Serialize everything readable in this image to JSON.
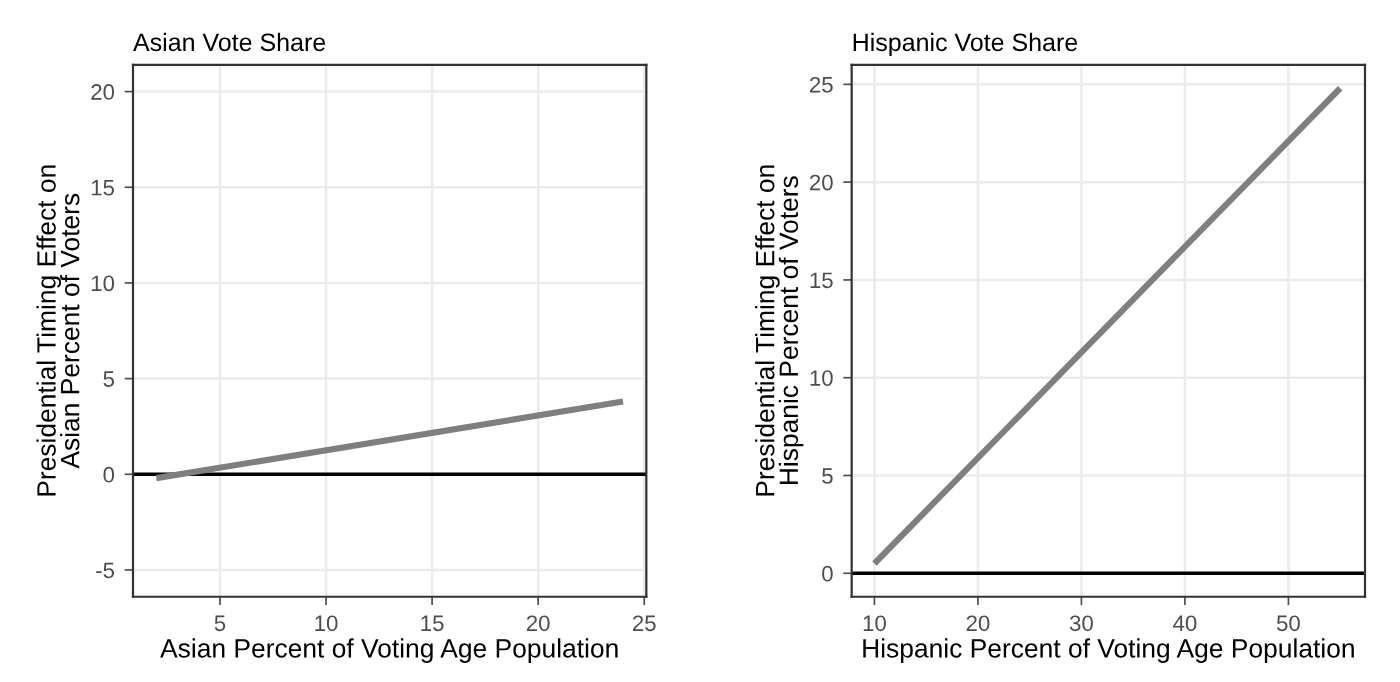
{
  "chart_data": [
    {
      "type": "line",
      "title": "Asian Vote Share",
      "xlabel": "Asian Percent of Voting Age Population",
      "ylabel": "Presidential Timing Effect on\nAsian Percent of Voters",
      "x": [
        2,
        24
      ],
      "series": [
        {
          "color": "#7f7f7f",
          "values": [
            -0.2,
            3.8
          ]
        }
      ],
      "xlim": [
        0.9,
        25.1
      ],
      "xticks": [
        5,
        10,
        15,
        20,
        25
      ],
      "ylim": [
        -6.4,
        21.4
      ],
      "yticks": [
        -5,
        0,
        5,
        10,
        15,
        20
      ],
      "grid": true,
      "ref_lines": [
        {
          "axis": "y",
          "value": 0,
          "color": "#000000"
        }
      ]
    },
    {
      "type": "line",
      "title": "Hispanic Vote Share",
      "xlabel": "Hispanic Percent of Voting Age Population",
      "ylabel": "Presidential Timing Effect on\nHispanic Percent of Voters",
      "x": [
        10,
        55
      ],
      "series": [
        {
          "color": "#7f7f7f",
          "values": [
            0.5,
            24.8
          ]
        }
      ],
      "xlim": [
        7.8,
        57.4
      ],
      "xticks": [
        10,
        20,
        30,
        40,
        50
      ],
      "ylim": [
        -1.2,
        26
      ],
      "yticks": [
        0,
        5,
        10,
        15,
        20,
        25
      ],
      "grid": true,
      "ref_lines": [
        {
          "axis": "y",
          "value": 0,
          "color": "#000000"
        }
      ]
    }
  ]
}
